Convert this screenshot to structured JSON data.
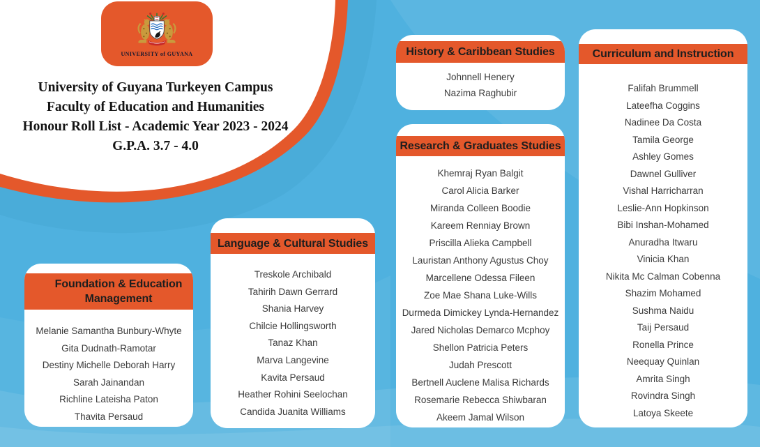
{
  "colors": {
    "background": "#4FB1DF",
    "accent": "#E4582B",
    "card": "#FFFFFF",
    "header_text": "#1E1E1E",
    "name_text": "#3A3A3A"
  },
  "header": {
    "logo": {
      "label": "UNIVERSITY of GUYANA",
      "icon": "university-of-guyana-coat-of-arms"
    },
    "title_lines": [
      "University of Guyana Turkeyen Campus",
      "Faculty of Education and Humanities",
      "Honour Roll List - Academic Year 2023 - 2024",
      "G.P.A. 3.7 - 4.0"
    ]
  },
  "cards": [
    {
      "id": "foundation-education-management",
      "title": "Foundation & Education Management",
      "names": [
        "Melanie Samantha Bunbury-Whyte",
        "Gita  Dudnath-Ramotar",
        "Destiny Michelle Deborah Harry",
        "Sarah Jainandan",
        "Richline Lateisha Paton",
        "Thavita Persaud"
      ]
    },
    {
      "id": "language-cultural-studies",
      "title": "Language & Cultural Studies",
      "names": [
        "Treskole Archibald",
        "Tahirih Dawn Gerrard",
        "Shania Harvey",
        "Chilcie Hollingsworth",
        "Tanaz Khan",
        "Marva Langevine",
        "Kavita Persaud",
        "Heather Rohini Seelochan",
        "Candida Juanita Williams"
      ]
    },
    {
      "id": "history-caribbean-studies",
      "title": "History & Caribbean Studies",
      "names": [
        "Johnnell Henery",
        "Nazima Raghubir"
      ]
    },
    {
      "id": "research-graduates-studies",
      "title": "Research & Graduates Studies",
      "names": [
        "Khemraj Ryan Balgit",
        "Carol Alicia Barker",
        "Miranda Colleen Boodie",
        "Kareem Renniay Brown",
        "Priscilla Alieka Campbell",
        "Lauristan Anthony Agustus Choy",
        "Marcellene Odessa Fileen",
        "Zoe Mae Shana Luke-Wills",
        "Durmeda Dimickey Lynda-Hernandez",
        "Jared Nicholas Demarco Mcphoy",
        "Shellon Patricia Peters",
        "Judah Prescott",
        "Bertnell Auclene Malisa Richards",
        "Rosemarie Rebecca Shiwbaran",
        "Akeem Jamal Wilson"
      ]
    },
    {
      "id": "curriculum-and-instruction",
      "title": "Curriculum and Instruction",
      "names": [
        "Falifah Brummell",
        "Lateefha Coggins",
        "Nadinee Da Costa",
        "Tamila George",
        "Ashley Gomes",
        "Dawnel Gulliver",
        "Vishal Harricharran",
        "Leslie-Ann Hopkinson",
        "Bibi Inshan-Mohamed",
        "Anuradha Itwaru",
        "Vinicia Khan",
        "Nikita Mc Calman Cobenna",
        "Shazim Mohamed",
        "Sushma Naidu",
        "Taij Persaud",
        "Ronella Prince",
        "Neequay Quinlan",
        "Amrita Singh",
        "Rovindra Singh",
        "Latoya Skeete"
      ]
    }
  ]
}
